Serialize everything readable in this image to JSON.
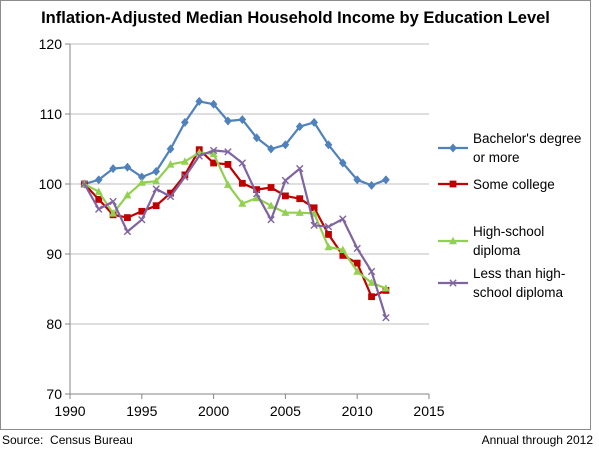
{
  "chart_data": {
    "type": "line",
    "title": "Inflation-Adjusted Median Household Income by Education Level",
    "xlabel": "",
    "ylabel": "",
    "xlim": [
      1990,
      2015
    ],
    "ylim": [
      70,
      120
    ],
    "x_ticks": [
      1990,
      1995,
      2000,
      2005,
      2010,
      2015
    ],
    "y_ticks": [
      70,
      80,
      90,
      100,
      110,
      120
    ],
    "grid": "horizontal",
    "legend_position": "right",
    "x": [
      1991,
      1992,
      1993,
      1994,
      1995,
      1996,
      1997,
      1998,
      1999,
      2000,
      2001,
      2002,
      2003,
      2004,
      2005,
      2006,
      2007,
      2008,
      2009,
      2010,
      2011,
      2012
    ],
    "series": [
      {
        "name": "Bachelor's degree or more",
        "legend_lines": [
          "Bachelor's degree",
          "or more"
        ],
        "color": "#4f81bd",
        "marker": "diamond",
        "values": [
          100.0,
          100.6,
          102.2,
          102.4,
          101.0,
          101.8,
          105.0,
          108.8,
          111.8,
          111.4,
          109.0,
          109.2,
          106.6,
          105.0,
          105.6,
          108.2,
          108.8,
          105.6,
          103.0,
          100.6,
          99.8,
          100.6
        ]
      },
      {
        "name": "Some college",
        "legend_lines": [
          "Some college"
        ],
        "color": "#c00000",
        "marker": "square",
        "values": [
          100.0,
          97.8,
          95.6,
          95.2,
          96.1,
          96.9,
          98.7,
          101.3,
          104.9,
          103.0,
          102.8,
          100.1,
          99.2,
          99.5,
          98.3,
          97.9,
          96.6,
          92.8,
          89.8,
          88.7,
          83.9,
          84.8
        ]
      },
      {
        "name": "High-school diploma",
        "legend_lines": [
          "High-school",
          "diploma"
        ],
        "color": "#92d050",
        "marker": "triangle",
        "values": [
          100.0,
          98.9,
          95.8,
          98.4,
          100.2,
          100.4,
          102.8,
          103.2,
          104.5,
          104.3,
          99.9,
          97.2,
          98.0,
          96.9,
          95.9,
          95.9,
          95.8,
          91.0,
          90.6,
          87.5,
          85.9,
          85.1
        ]
      },
      {
        "name": "Less than high-school diploma",
        "legend_lines": [
          "Less than high-",
          "school diploma"
        ],
        "color": "#8064a2",
        "marker": "x",
        "values": [
          100.0,
          96.4,
          97.5,
          93.2,
          94.9,
          99.3,
          98.2,
          101.0,
          104.0,
          104.8,
          104.6,
          103.0,
          98.6,
          94.9,
          100.5,
          102.2,
          94.1,
          93.9,
          95.0,
          90.8,
          87.5,
          80.9
        ]
      }
    ]
  },
  "footer": {
    "source": "Source:  Census Bureau",
    "note": "Annual through 2012"
  }
}
